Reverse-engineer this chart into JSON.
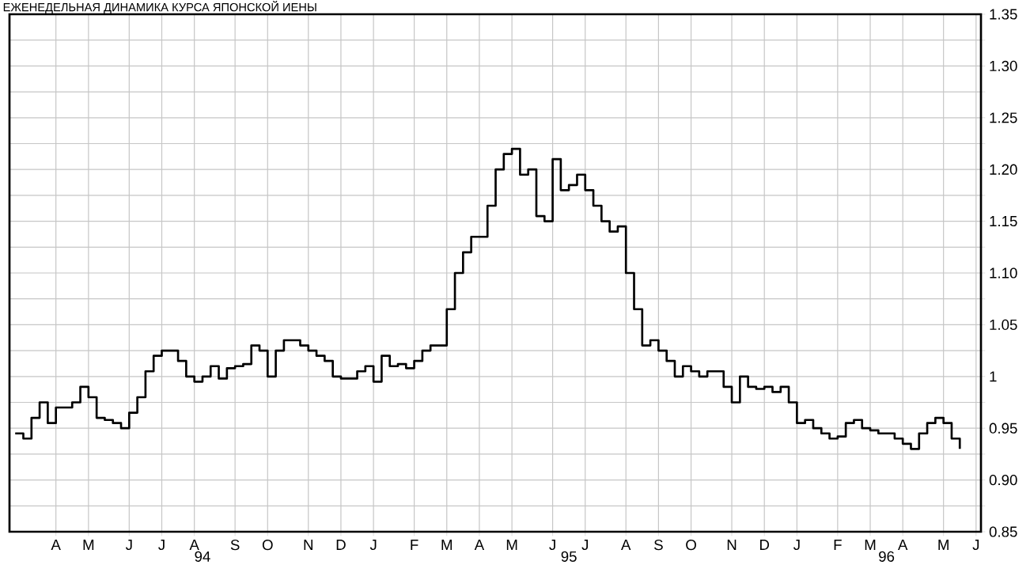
{
  "chart_data": {
    "type": "step",
    "title": "ЕЖЕНЕДЕЛЬНАЯ ДИНАМИКА КУРСА ЯПОНСКОЙ ИЕНЫ",
    "categories": [
      null,
      null,
      null,
      null,
      null,
      "A",
      null,
      null,
      null,
      "M",
      null,
      null,
      null,
      null,
      "J",
      null,
      null,
      null,
      "J",
      null,
      null,
      null,
      "A",
      "94",
      null,
      null,
      null,
      "S",
      null,
      null,
      null,
      "O",
      null,
      null,
      null,
      null,
      "N",
      null,
      null,
      null,
      "D",
      null,
      null,
      null,
      "J",
      null,
      null,
      null,
      null,
      "F",
      null,
      null,
      null,
      "M",
      null,
      null,
      null,
      "A",
      null,
      null,
      null,
      "M",
      null,
      null,
      null,
      null,
      "J",
      null,
      "95",
      null,
      "J",
      null,
      null,
      null,
      null,
      "A",
      null,
      null,
      null,
      "S",
      null,
      null,
      null,
      "O",
      null,
      null,
      null,
      null,
      "N",
      null,
      null,
      null,
      "D",
      null,
      null,
      null,
      "J",
      null,
      null,
      null,
      null,
      "F",
      null,
      null,
      null,
      "M",
      null,
      "96",
      null,
      "A",
      null,
      null,
      null,
      null,
      "M",
      null,
      null,
      null,
      "J"
    ],
    "values": [
      0.945,
      0.94,
      0.96,
      0.975,
      0.955,
      0.97,
      0.97,
      0.975,
      0.99,
      0.98,
      0.96,
      0.958,
      0.955,
      0.95,
      0.965,
      0.98,
      1.005,
      1.02,
      1.025,
      1.025,
      1.015,
      1.0,
      0.995,
      1.0,
      1.01,
      0.998,
      1.008,
      1.01,
      1.012,
      1.03,
      1.025,
      1.0,
      1.025,
      1.035,
      1.035,
      1.03,
      1.025,
      1.02,
      1.015,
      1.0,
      0.998,
      0.998,
      1.005,
      1.01,
      0.995,
      1.02,
      1.01,
      1.012,
      1.008,
      1.015,
      1.025,
      1.03,
      1.03,
      1.065,
      1.1,
      1.12,
      1.135,
      1.135,
      1.165,
      1.2,
      1.215,
      1.22,
      1.195,
      1.2,
      1.155,
      1.15,
      1.21,
      1.18,
      1.185,
      1.195,
      1.18,
      1.165,
      1.15,
      1.14,
      1.145,
      1.1,
      1.065,
      1.03,
      1.035,
      1.025,
      1.015,
      1.0,
      1.01,
      1.005,
      1.0,
      1.005,
      1.005,
      0.99,
      0.975,
      1.0,
      0.99,
      0.988,
      0.99,
      0.985,
      0.99,
      0.975,
      0.955,
      0.958,
      0.95,
      0.945,
      0.94,
      0.942,
      0.955,
      0.958,
      0.95,
      0.948,
      0.945,
      0.945,
      0.94,
      0.935,
      0.93,
      0.945,
      0.955,
      0.96,
      0.955,
      0.94,
      0.93,
      null,
      null
    ],
    "color": "#000000",
    "ylim": [
      0.85,
      1.35
    ],
    "yticks": [
      0.85,
      {
        "value": 0.875,
        "label": null
      },
      {
        "value": 0.9,
        "label": "0.90"
      },
      {
        "value": 0.925,
        "label": null
      },
      0.95,
      {
        "value": 0.975,
        "label": null
      },
      1,
      {
        "value": 1.025,
        "label": null
      },
      1.05,
      {
        "value": 1.075,
        "label": null
      },
      {
        "value": 1.1,
        "label": "1.10"
      },
      {
        "value": 1.125,
        "label": null
      },
      1.15,
      {
        "value": 1.175,
        "label": null
      },
      {
        "value": 1.2,
        "label": "1.20"
      },
      {
        "value": 1.225,
        "label": null
      },
      1.25,
      {
        "value": 1.275,
        "label": null
      },
      {
        "value": 1.3,
        "label": "1.30"
      },
      {
        "value": 1.325,
        "label": null
      },
      1.35
    ],
    "grid": true,
    "marker": "none",
    "line_style": "solid"
  }
}
